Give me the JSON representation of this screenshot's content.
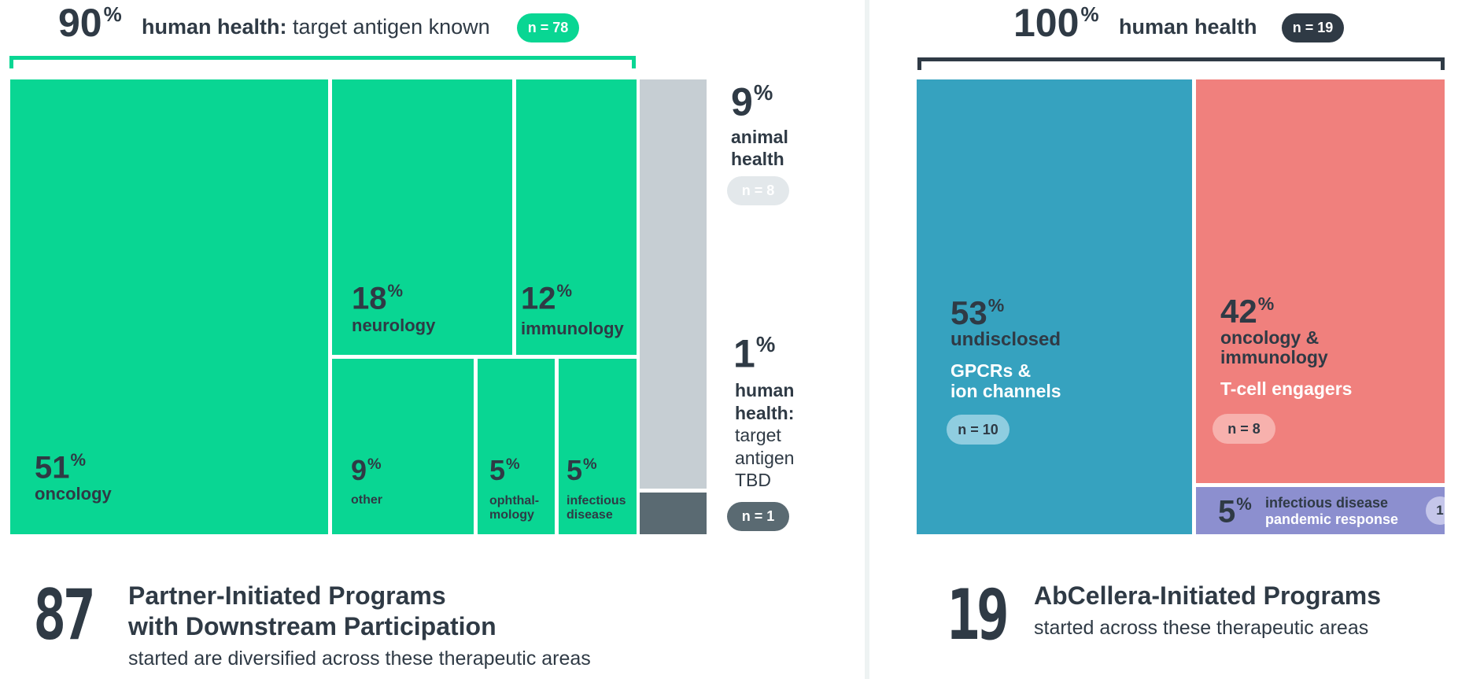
{
  "chart_data": [
    {
      "type": "treemap",
      "name": "Partner-Initiated Programs",
      "header": {
        "value": "90",
        "unit": "%",
        "label_bold": "human health:",
        "label_rest": " target antigen known",
        "count": "n = 78"
      },
      "cells": [
        {
          "id": "oncology",
          "value": "51",
          "unit": "%",
          "label": "oncology"
        },
        {
          "id": "neurology",
          "value": "18",
          "unit": "%",
          "label": "neurology"
        },
        {
          "id": "immunology",
          "value": "12",
          "unit": "%",
          "label": "immunology"
        },
        {
          "id": "other",
          "value": "9",
          "unit": "%",
          "label": "other"
        },
        {
          "id": "ophthalmology",
          "value": "5",
          "unit": "%",
          "label_line1": "ophthal-",
          "label_line2": "mology"
        },
        {
          "id": "infectious",
          "value": "5",
          "unit": "%",
          "label_line1": "infectious",
          "label_line2": "disease"
        }
      ],
      "side": [
        {
          "id": "animal",
          "value": "9",
          "unit": "%",
          "label_line1": "animal",
          "label_line2": "health",
          "count": "n = 8"
        },
        {
          "id": "tbd",
          "value": "1",
          "unit": "%",
          "label_line1": "human",
          "label_line2": "health:",
          "label_line3": "target",
          "label_line4": "antigen",
          "label_line5": "TBD",
          "count": "n = 1"
        }
      ],
      "footer": {
        "number": "87",
        "title_line1": "Partner-Initiated Programs",
        "title_line2": "with Downstream Participation",
        "subtitle": "started are diversified across these therapeutic areas"
      }
    },
    {
      "type": "treemap",
      "name": "AbCellera-Initiated Programs",
      "header": {
        "value": "100",
        "unit": "%",
        "label_bold": "human health",
        "count": "n = 19"
      },
      "cells": [
        {
          "id": "undisclosed",
          "value": "53",
          "unit": "%",
          "label": "undisclosed",
          "sub_line1": "GPCRs &",
          "sub_line2": "ion channels",
          "count": "n = 10"
        },
        {
          "id": "onc-imm",
          "value": "42",
          "unit": "%",
          "label_line1": "oncology &",
          "label_line2": "immunology",
          "sub": "T-cell engagers",
          "count": "n = 8"
        },
        {
          "id": "inf-pandemic",
          "value": "5",
          "unit": "%",
          "label_line1": "infectious disease",
          "label_line2": "pandemic response",
          "count": "1"
        }
      ],
      "footer": {
        "number": "19",
        "title": "AbCellera-Initiated Programs",
        "subtitle": "started across these therapeutic areas"
      }
    }
  ],
  "colors": {
    "green": "#09d693",
    "grey": "#c6ced3",
    "slate": "#5a6a72",
    "teal": "#36a2bf",
    "salmon": "#f0807d",
    "lavender": "#8c8fcf",
    "dark": "#2f3a45"
  }
}
